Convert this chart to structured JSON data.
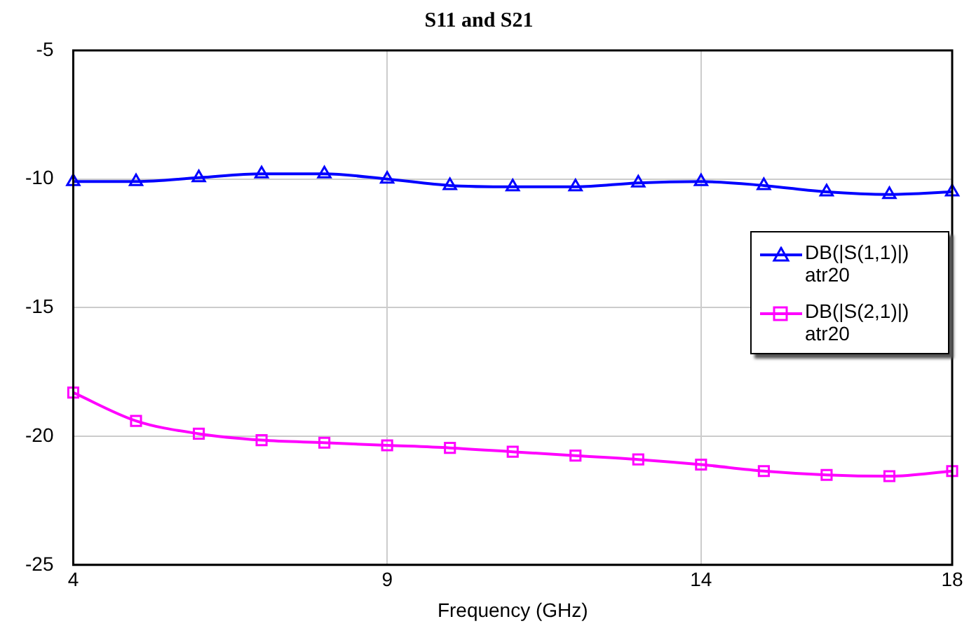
{
  "chart_data": {
    "type": "line",
    "title": "S11 and S21",
    "xlabel": "Frequency (GHz)",
    "x": [
      4,
      5,
      6,
      7,
      8,
      9,
      10,
      11,
      12,
      13,
      14,
      15,
      16,
      17,
      18
    ],
    "series": [
      {
        "name": "DB(|S(1,1)|) atr20",
        "color": "#0000ff",
        "marker": "triangle",
        "values": [
          -10.1,
          -10.1,
          -9.95,
          -9.8,
          -9.8,
          -10.0,
          -10.25,
          -10.3,
          -10.3,
          -10.15,
          -10.1,
          -10.25,
          -10.5,
          -10.6,
          -10.5
        ]
      },
      {
        "name": "DB(|S(2,1)|) atr20",
        "color": "#ff00ff",
        "marker": "square",
        "values": [
          -18.3,
          -19.4,
          -19.9,
          -20.15,
          -20.25,
          -20.35,
          -20.45,
          -20.6,
          -20.75,
          -20.9,
          -21.1,
          -21.35,
          -21.5,
          -21.55,
          -21.35
        ]
      }
    ],
    "xlim": [
      4,
      18
    ],
    "xticks": [
      4,
      9,
      14,
      18
    ],
    "ylim": [
      -25,
      -5
    ],
    "yticks": [
      -25,
      -20,
      -15,
      -10,
      -5
    ],
    "grid": true,
    "legend": "right",
    "line_style": "solid"
  }
}
